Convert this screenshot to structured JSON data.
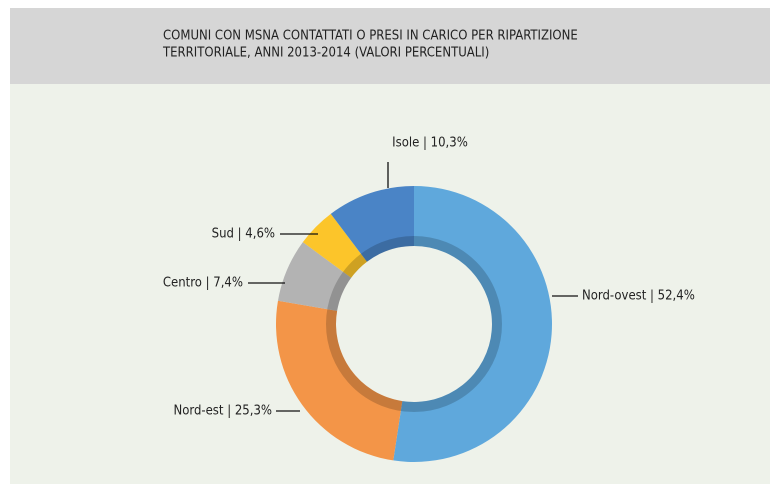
{
  "chart_data": {
    "type": "pie",
    "title": [
      "COMUNI CON MSNA CONTATTATI O PRESI IN CARICO PER RIPARTIZIONE",
      "TERRITORIALE, ANNI 2013-2014 (VALORI PERCENTUALI)"
    ],
    "values": [
      52.4,
      25.3,
      7.4,
      4.6,
      10.3
    ],
    "value_labels": [
      "Nord-ovest | 52,4%",
      "Nord-est | 25,3%",
      "Centro | 7,4%",
      "Sud | 4,6%",
      "Isole | 10,3%"
    ],
    "colors": [
      "#5fa8dc",
      "#f39548",
      "#b3b3b3",
      "#fcc52a",
      "#4a84c6"
    ]
  }
}
